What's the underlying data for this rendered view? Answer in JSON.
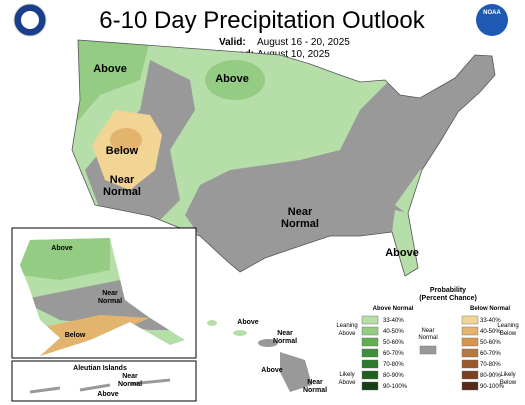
{
  "header": {
    "title": "6-10 Day Precipitation Outlook",
    "valid_label": "Valid:",
    "valid": "August 16 - 20, 2025",
    "issued_label": "Issued:",
    "issued": "August 10, 2025",
    "logo": "NOAA"
  },
  "map_labels": {
    "conus": [
      [
        "Above"
      ],
      [
        "Above"
      ],
      [
        "Below"
      ],
      [
        "Near",
        "Normal"
      ],
      [
        "Near",
        "Normal"
      ],
      [
        "Above"
      ]
    ],
    "alaska": [
      [
        "Above"
      ],
      [
        "Near",
        "Normal"
      ],
      [
        "Below"
      ]
    ],
    "aleutians": {
      "title": "Aleutian Islands",
      "labels": [
        [
          "Near",
          "Normal"
        ],
        [
          "Above"
        ]
      ]
    },
    "hawaii": [
      [
        "Above"
      ],
      [
        "Near",
        "Normal"
      ],
      [
        "Above"
      ],
      [
        "Near",
        "Normal"
      ]
    ]
  },
  "legend": {
    "title": [
      "Probability",
      "(Percent Chance)"
    ],
    "above": {
      "name": "Above Normal",
      "leaning": [
        "Leaning",
        "Above"
      ],
      "likely": [
        "Likely",
        "Above"
      ],
      "bins": [
        "33-40%",
        "40-50%",
        "50-60%",
        "60-70%",
        "70-80%",
        "80-90%",
        "90-100%"
      ],
      "colors": [
        "#b5dea9",
        "#93cc82",
        "#62ad52",
        "#3e9139",
        "#2c7a2c",
        "#1f5f1f",
        "#153f14"
      ]
    },
    "near": {
      "name": [
        "Near",
        "Normal"
      ],
      "color": "#999999"
    },
    "below": {
      "name": "Below Normal",
      "leaning": [
        "Leaning",
        "Below"
      ],
      "likely": [
        "Likely",
        "Below"
      ],
      "bins": [
        "33-40%",
        "40-50%",
        "50-60%",
        "60-70%",
        "70-80%",
        "80-90%",
        "90-100%"
      ],
      "colors": [
        "#f2d595",
        "#e3b46d",
        "#d4964f",
        "#b9783b",
        "#9a5a2b",
        "#7a4020",
        "#562a18"
      ]
    }
  }
}
